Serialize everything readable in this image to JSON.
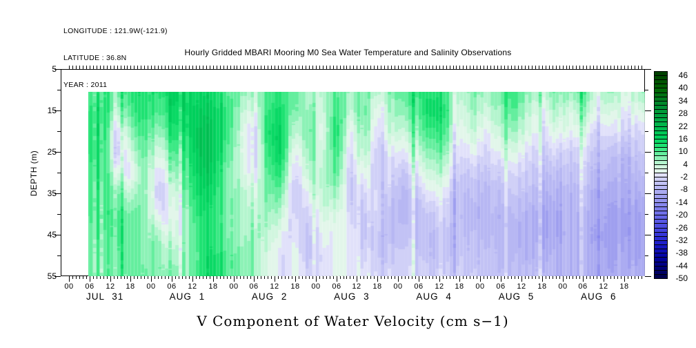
{
  "meta": {
    "longitude_label": "LONGITUDE : 121.9W(-121.9)",
    "latitude_label": "LATITUDE : 36.8N",
    "year_label": "YEAR : 2011"
  },
  "header": {
    "title": "Hourly Gridded MBARI Mooring M0 Sea Water Temperature and Salinity Observations"
  },
  "chart_data": {
    "type": "heatmap",
    "title": "Hourly Gridded MBARI Mooring M0 Sea Water Temperature and Salinity Observations",
    "bottom_title": "V Component of Water Velocity (cm s−1)",
    "ylabel": "DEPTH (m)",
    "ylim": [
      5,
      55
    ],
    "y_major_ticks": [
      5,
      15,
      25,
      35,
      45,
      55
    ],
    "y_minor_ticks": [
      10,
      20,
      30,
      40,
      50
    ],
    "x_axis": {
      "days": [
        "JUL 31",
        "AUG 1",
        "AUG 2",
        "AUG 3",
        "AUG 4",
        "AUG 5",
        "AUG 6"
      ],
      "hour_labels": [
        "00",
        "06",
        "12",
        "18"
      ],
      "minor_tick_every_hours": 1,
      "labeled_tick_every_hours": 6,
      "total_hours": 168
    },
    "grid": {
      "units": "cm s-1",
      "depths_m": [
        10.5,
        15,
        20,
        25,
        30,
        35,
        40,
        45,
        50,
        55
      ],
      "time_hours_since_jul31_00": [
        6,
        10,
        14,
        18,
        22,
        26,
        30,
        34,
        38,
        42,
        46,
        50,
        54,
        58,
        62,
        66,
        70,
        74,
        78,
        82,
        86,
        90,
        94,
        98,
        102,
        106,
        110,
        114,
        118,
        122,
        126,
        130,
        134,
        138,
        142,
        146,
        150,
        154,
        158,
        162,
        166
      ],
      "values_by_time_then_depth": [
        [
          10,
          12,
          12,
          12,
          11,
          10,
          10,
          9,
          8,
          8
        ],
        [
          14,
          16,
          16,
          15,
          14,
          13,
          12,
          11,
          10,
          10
        ],
        [
          8,
          4,
          -3,
          -4,
          2,
          8,
          10,
          10,
          9,
          8
        ],
        [
          12,
          10,
          6,
          2,
          -2,
          4,
          8,
          9,
          9,
          8
        ],
        [
          14,
          14,
          12,
          10,
          8,
          8,
          8,
          8,
          8,
          9
        ],
        [
          12,
          10,
          6,
          2,
          -2,
          -4,
          0,
          6,
          8,
          8
        ],
        [
          16,
          14,
          12,
          8,
          4,
          0,
          -2,
          0,
          4,
          6
        ],
        [
          18,
          18,
          16,
          14,
          12,
          10,
          8,
          8,
          8,
          8
        ],
        [
          16,
          18,
          20,
          20,
          18,
          16,
          14,
          12,
          12,
          12
        ],
        [
          14,
          16,
          18,
          18,
          16,
          14,
          12,
          12,
          14,
          14
        ],
        [
          10,
          12,
          12,
          10,
          8,
          8,
          8,
          8,
          10,
          10
        ],
        [
          8,
          6,
          4,
          4,
          4,
          6,
          6,
          6,
          8,
          8
        ],
        [
          4,
          0,
          -4,
          -4,
          -2,
          2,
          4,
          6,
          6,
          6
        ],
        [
          10,
          12,
          14,
          12,
          10,
          8,
          6,
          4,
          2,
          2
        ],
        [
          12,
          14,
          16,
          16,
          12,
          8,
          4,
          0,
          -2,
          -2
        ],
        [
          8,
          6,
          2,
          -2,
          -4,
          -6,
          -4,
          -2,
          0,
          0
        ],
        [
          6,
          8,
          10,
          8,
          6,
          2,
          -2,
          -4,
          -4,
          -2
        ],
        [
          4,
          2,
          0,
          2,
          4,
          4,
          2,
          0,
          -2,
          -2
        ],
        [
          10,
          12,
          14,
          12,
          10,
          6,
          2,
          0,
          0,
          0
        ],
        [
          6,
          4,
          0,
          -2,
          -4,
          -4,
          -2,
          0,
          0,
          0
        ],
        [
          8,
          10,
          8,
          6,
          2,
          -2,
          -4,
          -4,
          -2,
          0
        ],
        [
          4,
          0,
          -2,
          -4,
          -4,
          -2,
          -2,
          -4,
          -4,
          -2
        ],
        [
          8,
          6,
          4,
          0,
          -2,
          -4,
          -6,
          -6,
          -4,
          -2
        ],
        [
          10,
          8,
          4,
          0,
          -4,
          -6,
          -6,
          -4,
          -2,
          -2
        ],
        [
          12,
          10,
          8,
          4,
          0,
          -4,
          -6,
          -6,
          -4,
          -2
        ],
        [
          14,
          16,
          12,
          8,
          4,
          0,
          -4,
          -6,
          -6,
          -4
        ],
        [
          10,
          12,
          10,
          6,
          2,
          -2,
          -4,
          -6,
          -6,
          -4
        ],
        [
          4,
          2,
          0,
          -2,
          -4,
          -6,
          -6,
          -6,
          -4,
          -4
        ],
        [
          8,
          6,
          4,
          0,
          -4,
          -6,
          -8,
          -6,
          -6,
          -4
        ],
        [
          6,
          4,
          0,
          -2,
          -4,
          -6,
          -6,
          -6,
          -4,
          -4
        ],
        [
          10,
          8,
          6,
          2,
          -2,
          -4,
          -6,
          -6,
          -6,
          -4
        ],
        [
          12,
          10,
          6,
          2,
          -2,
          -4,
          -6,
          -8,
          -6,
          -6
        ],
        [
          6,
          4,
          2,
          -2,
          -4,
          -6,
          -8,
          -8,
          -8,
          -6
        ],
        [
          4,
          0,
          -2,
          -4,
          -6,
          -8,
          -10,
          -10,
          -8,
          -6
        ],
        [
          8,
          6,
          2,
          -2,
          -6,
          -8,
          -10,
          -10,
          -8,
          -8
        ],
        [
          6,
          2,
          0,
          -4,
          -6,
          -8,
          -8,
          -8,
          -8,
          -8
        ],
        [
          10,
          6,
          2,
          -2,
          -4,
          -6,
          -8,
          -8,
          -8,
          -8
        ],
        [
          4,
          2,
          -2,
          -4,
          -6,
          -8,
          -8,
          -10,
          -8,
          -8
        ],
        [
          8,
          4,
          0,
          -4,
          -6,
          -8,
          -10,
          -10,
          -10,
          -8
        ],
        [
          2,
          0,
          -2,
          -6,
          -8,
          -8,
          -10,
          -10,
          -8,
          -8
        ],
        [
          6,
          2,
          -2,
          -4,
          -6,
          -8,
          -10,
          -10,
          -10,
          -8
        ]
      ]
    },
    "colorbar": {
      "min": -50,
      "max": 48,
      "band_step": 2,
      "labels": [
        46,
        40,
        34,
        28,
        22,
        16,
        10,
        4,
        -2,
        -8,
        -14,
        -20,
        -26,
        -32,
        -38,
        -44,
        -50
      ],
      "color_stops": [
        [
          -50,
          "#000046"
        ],
        [
          -46,
          "#00006e"
        ],
        [
          -40,
          "#0202a0"
        ],
        [
          -34,
          "#1919c8"
        ],
        [
          -28,
          "#3c3cdc"
        ],
        [
          -22,
          "#5f5fe6"
        ],
        [
          -16,
          "#8282ec"
        ],
        [
          -10,
          "#a5a5f0"
        ],
        [
          -4,
          "#c8c8f6"
        ],
        [
          -1,
          "#e1e1fa"
        ],
        [
          1,
          "#e2f6ea"
        ],
        [
          4,
          "#c8f6da"
        ],
        [
          8,
          "#78f0aa"
        ],
        [
          12,
          "#28e678"
        ],
        [
          16,
          "#00d45f"
        ],
        [
          24,
          "#00b048"
        ],
        [
          32,
          "#008c30"
        ],
        [
          40,
          "#006400"
        ],
        [
          48,
          "#003c00"
        ]
      ]
    }
  }
}
